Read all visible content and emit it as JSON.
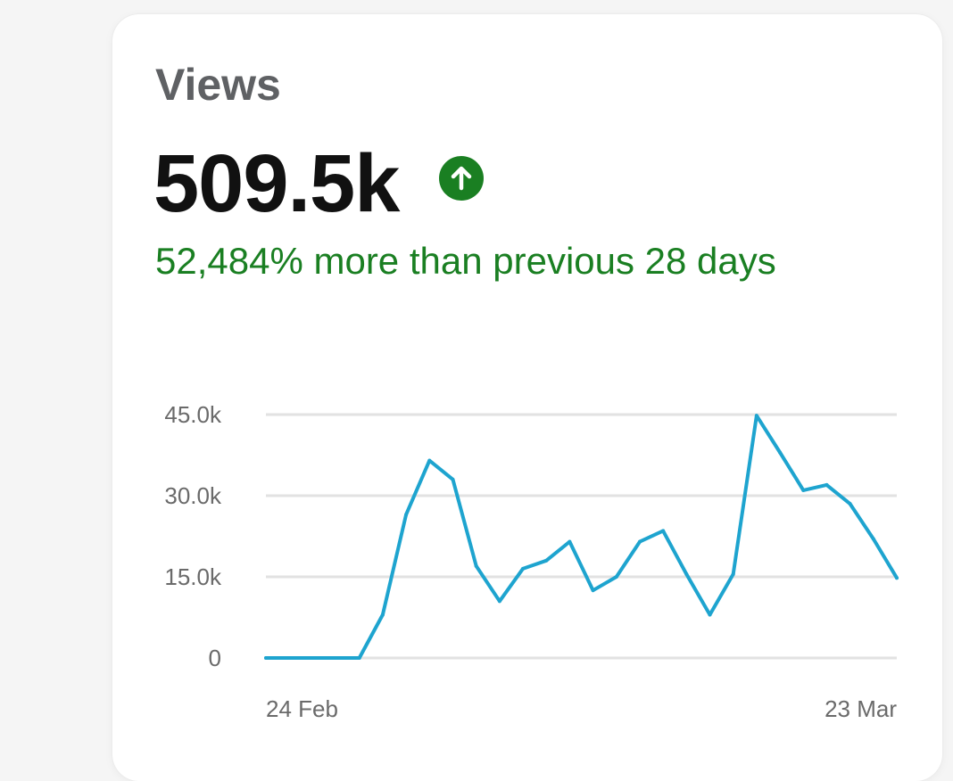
{
  "card": {
    "title": "Views",
    "value": "509.5k",
    "trend_icon": "arrow-up-circle-icon",
    "change_text": "52,484% more than previous 28 days"
  },
  "colors": {
    "positive": "#1a7f22",
    "line": "#1ea4cf",
    "grid": "#e2e2e2",
    "axis_text": "#6a6a6a"
  },
  "chart_data": {
    "type": "line",
    "title": "",
    "xlabel": "",
    "ylabel": "",
    "x": [
      "24 Feb",
      "25 Feb",
      "26 Feb",
      "27 Feb",
      "28 Feb",
      "1 Mar",
      "2 Mar",
      "3 Mar",
      "4 Mar",
      "5 Mar",
      "6 Mar",
      "7 Mar",
      "8 Mar",
      "9 Mar",
      "10 Mar",
      "11 Mar",
      "12 Mar",
      "13 Mar",
      "14 Mar",
      "15 Mar",
      "16 Mar",
      "17 Mar",
      "18 Mar",
      "19 Mar",
      "20 Mar",
      "21 Mar",
      "22 Mar",
      "23 Mar"
    ],
    "x_tick_labels": [
      "24 Feb",
      "23 Mar"
    ],
    "values": [
      0,
      0,
      0,
      0,
      0,
      8000,
      26500,
      36500,
      33000,
      17000,
      10500,
      16500,
      18000,
      21500,
      12500,
      15000,
      21500,
      23500,
      15500,
      8000,
      15500,
      44800,
      38000,
      31000,
      32000,
      28500,
      22000,
      14800
    ],
    "ylim": [
      0,
      45000
    ],
    "yticks": [
      0,
      15000,
      30000,
      45000
    ],
    "ytick_labels": [
      "0",
      "15.0k",
      "30.0k",
      "45.0k"
    ],
    "grid": true,
    "legend": "none"
  }
}
